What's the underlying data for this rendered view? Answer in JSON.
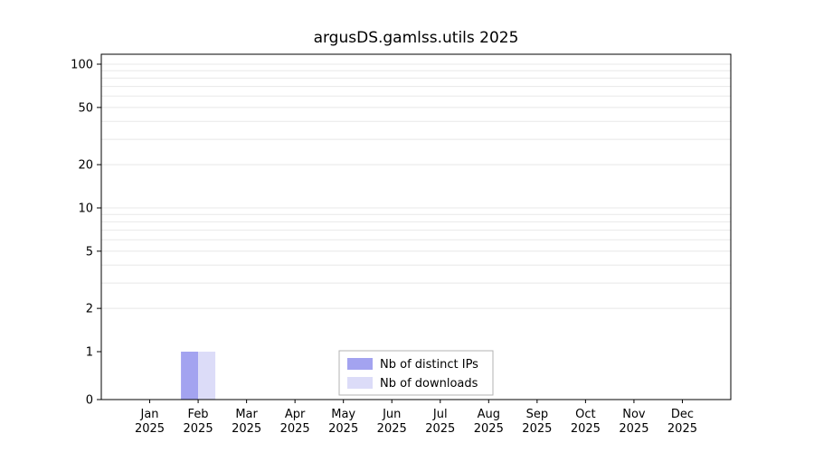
{
  "chart_data": {
    "type": "bar",
    "title": "argusDS.gamlss.utils 2025",
    "categories": [
      "Jan",
      "Feb",
      "Mar",
      "Apr",
      "May",
      "Jun",
      "Jul",
      "Aug",
      "Sep",
      "Oct",
      "Nov",
      "Dec"
    ],
    "x_year": "2025",
    "series": [
      {
        "name": "Nb of distinct IPs",
        "color": "#a3a3f0",
        "values": [
          0,
          1,
          0,
          0,
          0,
          0,
          0,
          0,
          0,
          0,
          0,
          0
        ]
      },
      {
        "name": "Nb of downloads",
        "color": "#dcdcf8",
        "values": [
          0,
          1,
          0,
          0,
          0,
          0,
          0,
          0,
          0,
          0,
          0,
          0
        ]
      }
    ],
    "y_scale": "log10-with-zero-baseline",
    "y_ticks": [
      0,
      1,
      2,
      5,
      10,
      20,
      50,
      100
    ],
    "minor_gridlines": [
      2,
      3,
      4,
      5,
      6,
      7,
      8,
      9,
      10,
      20,
      30,
      40,
      50,
      60,
      70,
      80,
      90,
      100
    ],
    "ylim": [
      0,
      120
    ],
    "grid": "horizontal-only",
    "legend": {
      "position": "bottom-center-inside",
      "entries": [
        "Nb of distinct IPs",
        "Nb of downloads"
      ]
    },
    "colors": {
      "axis": "#000000",
      "gridline": "#e8e8e8",
      "legend_border": "#b3b3b3",
      "background": "#ffffff",
      "text": "#000000"
    }
  }
}
